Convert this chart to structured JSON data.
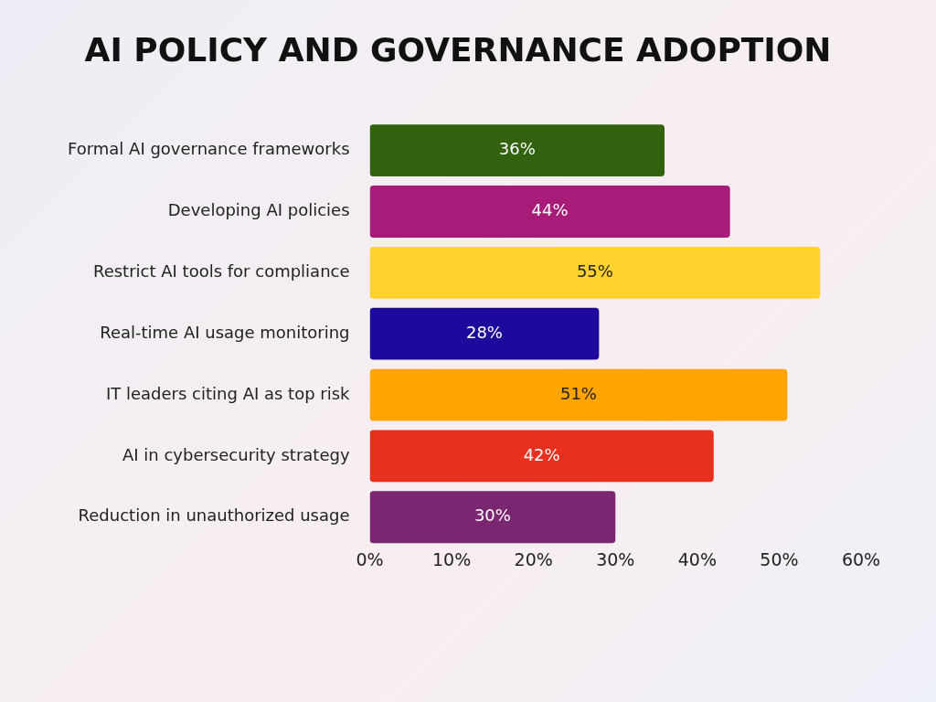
{
  "chart_data": {
    "type": "bar",
    "orientation": "horizontal",
    "title": "AI POLICY AND GOVERNANCE ADOPTION",
    "categories": [
      "Formal AI governance frameworks",
      "Developing AI policies",
      "Restrict AI tools for compliance",
      "Real-time AI usage monitoring",
      "IT leaders citing AI as top risk",
      "AI in cybersecurity strategy",
      "Reduction in unauthorized usage"
    ],
    "values": [
      36,
      44,
      55,
      28,
      51,
      42,
      30
    ],
    "colors": [
      "#33620f",
      "#a81c79",
      "#ffd22e",
      "#1d0a9c",
      "#ffa400",
      "#e8301f",
      "#7a2670"
    ],
    "value_labels": [
      "36%",
      "44%",
      "55%",
      "28%",
      "51%",
      "42%",
      "30%"
    ],
    "xlim": [
      0,
      60
    ],
    "xticks": [
      {
        "value": 0,
        "label": "0%"
      },
      {
        "value": 10,
        "label": "10%"
      },
      {
        "value": 20,
        "label": "20%"
      },
      {
        "value": 30,
        "label": "30%"
      },
      {
        "value": 40,
        "label": "40%"
      },
      {
        "value": 50,
        "label": "50%"
      },
      {
        "value": 60,
        "label": "60%"
      }
    ],
    "grid": false,
    "legend": false
  }
}
